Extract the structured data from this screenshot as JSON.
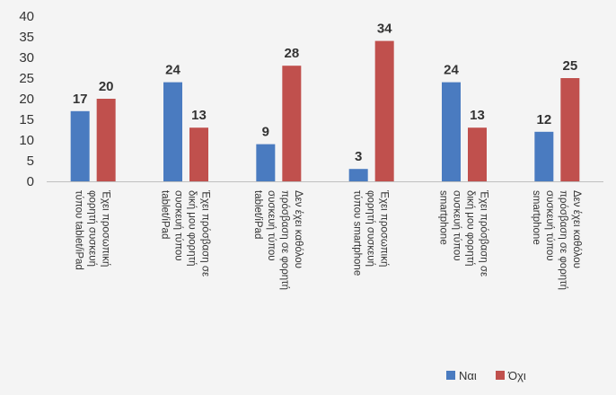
{
  "chart_data": {
    "type": "bar",
    "categories": [
      [
        "Έχει προσωπική",
        "φορητή συσκευή",
        "τύπου tablet/iPad"
      ],
      [
        "Έχει πρόσβαση σε",
        "δική μου φορητή",
        "συσκευή τύπου",
        "tablet/iPad"
      ],
      [
        "Δεν έχει καθόλου",
        "πρόσβαση σε φορητή",
        "συσκευή τύπου",
        "tablet/iPad"
      ],
      [
        "Έχει προσωπική",
        "φορητή συσκευή",
        "τύπου smartphone"
      ],
      [
        "Έχει πρόσβαση σε",
        "δική μου φορητή",
        "συσκευή τύπου",
        "smartphone"
      ],
      [
        "Δεν έχει καθόλου",
        "πρόσβαση σε φορητή",
        "συσκευή τύπου",
        "smartphone"
      ]
    ],
    "series": [
      {
        "name": "Ναι",
        "values": [
          17,
          24,
          9,
          3,
          24,
          12
        ],
        "color": "#4a7bc0"
      },
      {
        "name": "Όχι",
        "values": [
          20,
          13,
          28,
          34,
          13,
          25
        ],
        "color": "#c0504d"
      }
    ],
    "ylim": [
      0,
      40
    ],
    "yticks": [
      "0",
      "5",
      "10",
      "15",
      "20",
      "25",
      "30",
      "35",
      "40"
    ],
    "grid": false,
    "data_labels": true,
    "legend_position": "bottom-right"
  }
}
